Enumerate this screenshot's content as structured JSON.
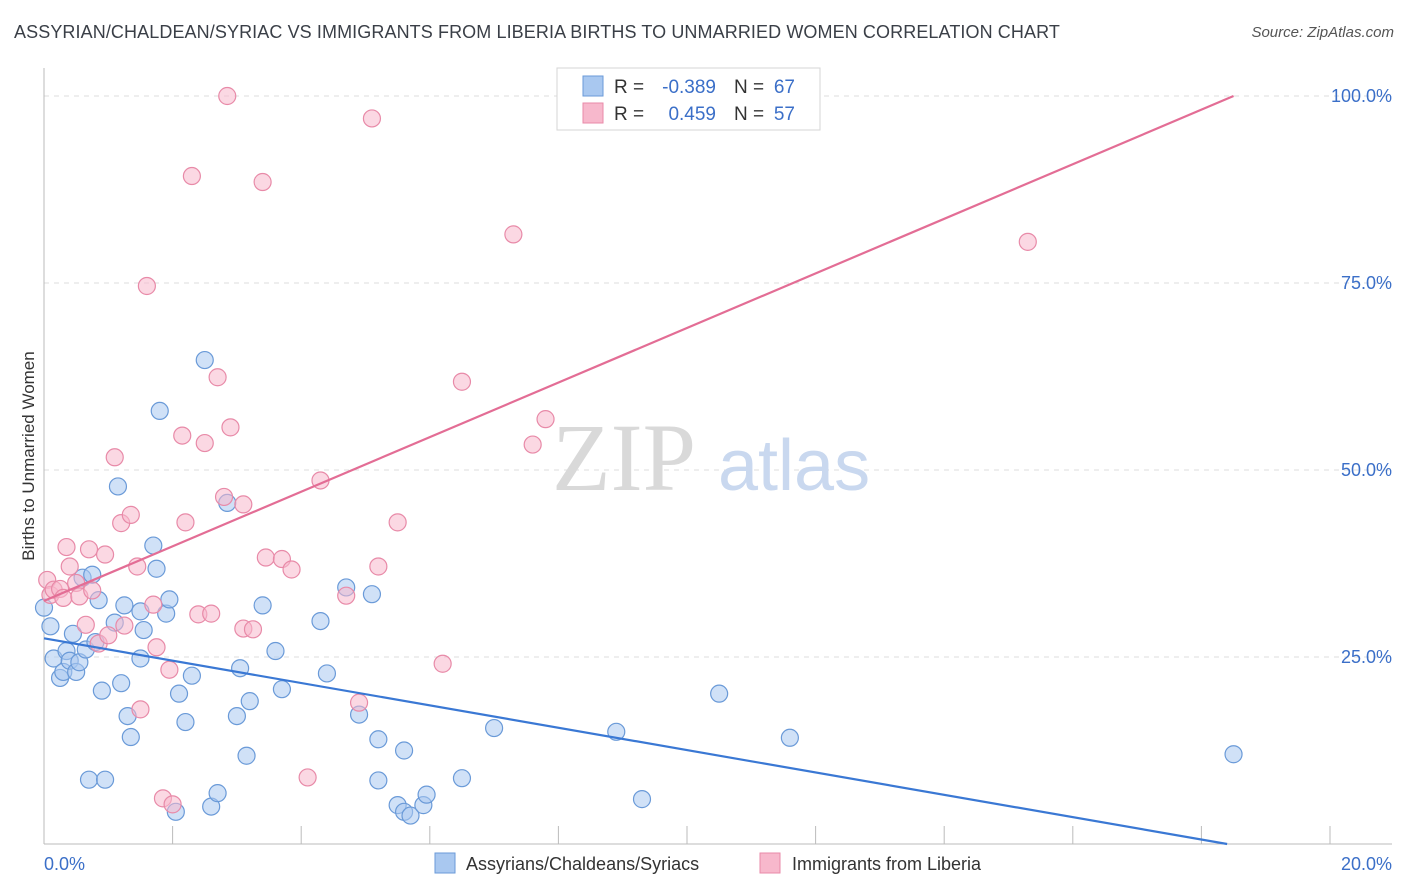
{
  "title": "ASSYRIAN/CHALDEAN/SYRIAC VS IMMIGRANTS FROM LIBERIA BIRTHS TO UNMARRIED WOMEN CORRELATION CHART",
  "source": "Source: ZipAtlas.com",
  "watermark": {
    "zip": "ZIP",
    "atlas": "atlas"
  },
  "legend_top": [
    {
      "r_label": "R =",
      "r_value": "-0.389",
      "n_label": "N =",
      "n_value": "67"
    },
    {
      "r_label": "R =",
      "r_value": "0.459",
      "n_label": "N =",
      "n_value": "57"
    }
  ],
  "legend_bottom": [
    {
      "label": "Assyrians/Chaldeans/Syriacs"
    },
    {
      "label": "Immigrants from Liberia"
    }
  ],
  "colors": {
    "blue_fill": "#a9c8f0",
    "blue_stroke": "#6a9ad8",
    "blue_line": "#3a78d4",
    "pink_fill": "#f7b8cc",
    "pink_stroke": "#e88aa8",
    "pink_line": "#e36d95",
    "axis_text": "#3b6fc8",
    "grid": "#dddddd"
  },
  "chart_data": {
    "type": "scatter",
    "title": "ASSYRIAN/CHALDEAN/SYRIAC VS IMMIGRANTS FROM LIBERIA BIRTHS TO UNMARRIED WOMEN CORRELATION CHART",
    "xlabel": "",
    "ylabel": "Births to Unmarried Women",
    "xlim": [
      0,
      20
    ],
    "ylim": [
      0,
      100
    ],
    "x_tick_labels": [
      "0.0%",
      "20.0%"
    ],
    "y_tick_labels": [
      "25.0%",
      "50.0%",
      "75.0%",
      "100.0%"
    ],
    "y_ticks": [
      25,
      50,
      75,
      100
    ],
    "grid": true,
    "legend_position": "top-center",
    "series": [
      {
        "name": "Assyrians/Chaldeans/Syriacs",
        "r": -0.389,
        "n": 67,
        "trend": {
          "x": [
            0,
            18.4
          ],
          "y": [
            27.5,
            0
          ]
        },
        "points": [
          [
            0.0,
            31.6
          ],
          [
            0.1,
            29.1
          ],
          [
            0.15,
            24.8
          ],
          [
            0.25,
            22.2
          ],
          [
            0.3,
            23.0
          ],
          [
            0.35,
            25.8
          ],
          [
            0.4,
            24.5
          ],
          [
            0.45,
            28.1
          ],
          [
            0.5,
            23.0
          ],
          [
            0.55,
            24.3
          ],
          [
            0.6,
            35.6
          ],
          [
            0.65,
            26.0
          ],
          [
            0.75,
            36.0
          ],
          [
            0.7,
            8.6
          ],
          [
            0.8,
            27.0
          ],
          [
            0.85,
            32.6
          ],
          [
            0.9,
            20.5
          ],
          [
            0.95,
            8.6
          ],
          [
            1.1,
            29.6
          ],
          [
            1.15,
            47.8
          ],
          [
            1.2,
            21.5
          ],
          [
            1.25,
            31.9
          ],
          [
            1.3,
            17.1
          ],
          [
            1.35,
            14.3
          ],
          [
            1.5,
            31.1
          ],
          [
            1.5,
            24.8
          ],
          [
            1.55,
            28.6
          ],
          [
            1.7,
            39.9
          ],
          [
            1.75,
            36.8
          ],
          [
            1.8,
            57.9
          ],
          [
            1.9,
            30.8
          ],
          [
            1.95,
            32.7
          ],
          [
            2.05,
            4.3
          ],
          [
            2.1,
            20.1
          ],
          [
            2.2,
            16.3
          ],
          [
            2.3,
            22.5
          ],
          [
            2.5,
            64.7
          ],
          [
            2.6,
            5.0
          ],
          [
            2.7,
            6.8
          ],
          [
            2.85,
            45.6
          ],
          [
            3.0,
            17.1
          ],
          [
            3.05,
            23.5
          ],
          [
            3.15,
            11.8
          ],
          [
            3.2,
            19.1
          ],
          [
            3.4,
            31.9
          ],
          [
            3.6,
            25.8
          ],
          [
            3.7,
            20.7
          ],
          [
            4.3,
            29.8
          ],
          [
            4.4,
            22.8
          ],
          [
            4.7,
            34.3
          ],
          [
            4.9,
            17.3
          ],
          [
            5.1,
            33.4
          ],
          [
            5.2,
            14.0
          ],
          [
            5.2,
            8.5
          ],
          [
            5.5,
            5.2
          ],
          [
            5.6,
            12.5
          ],
          [
            5.6,
            4.3
          ],
          [
            5.7,
            3.8
          ],
          [
            5.9,
            5.2
          ],
          [
            5.95,
            6.6
          ],
          [
            6.5,
            8.8
          ],
          [
            7.0,
            15.5
          ],
          [
            8.9,
            15.0
          ],
          [
            9.3,
            6.0
          ],
          [
            10.5,
            20.1
          ],
          [
            11.6,
            14.2
          ],
          [
            18.5,
            12.0
          ]
        ]
      },
      {
        "name": "Immigrants from Liberia",
        "r": 0.459,
        "n": 57,
        "trend": {
          "x": [
            0,
            18.5
          ],
          "y": [
            32.5,
            100
          ]
        },
        "points": [
          [
            0.05,
            35.3
          ],
          [
            0.1,
            33.3
          ],
          [
            0.15,
            34.0
          ],
          [
            0.25,
            34.1
          ],
          [
            0.3,
            32.9
          ],
          [
            0.35,
            39.7
          ],
          [
            0.4,
            37.1
          ],
          [
            0.5,
            34.9
          ],
          [
            0.55,
            33.1
          ],
          [
            0.65,
            29.3
          ],
          [
            0.7,
            39.4
          ],
          [
            0.75,
            33.9
          ],
          [
            0.85,
            26.8
          ],
          [
            0.95,
            38.7
          ],
          [
            1.0,
            27.9
          ],
          [
            1.1,
            51.7
          ],
          [
            1.2,
            42.9
          ],
          [
            1.25,
            29.2
          ],
          [
            1.35,
            44.0
          ],
          [
            1.45,
            37.1
          ],
          [
            1.5,
            18.0
          ],
          [
            1.6,
            74.6
          ],
          [
            1.7,
            32.0
          ],
          [
            1.75,
            26.3
          ],
          [
            1.85,
            6.1
          ],
          [
            1.95,
            23.3
          ],
          [
            2.0,
            5.3
          ],
          [
            2.15,
            54.6
          ],
          [
            2.2,
            43.0
          ],
          [
            2.3,
            89.3
          ],
          [
            2.4,
            30.7
          ],
          [
            2.5,
            53.6
          ],
          [
            2.6,
            30.8
          ],
          [
            2.7,
            62.4
          ],
          [
            2.8,
            46.4
          ],
          [
            2.85,
            100.0
          ],
          [
            2.9,
            55.7
          ],
          [
            3.1,
            28.8
          ],
          [
            3.1,
            45.4
          ],
          [
            3.25,
            28.7
          ],
          [
            3.4,
            88.5
          ],
          [
            3.45,
            38.3
          ],
          [
            3.7,
            38.1
          ],
          [
            3.85,
            36.7
          ],
          [
            4.1,
            8.9
          ],
          [
            4.3,
            48.6
          ],
          [
            4.7,
            33.2
          ],
          [
            4.9,
            18.9
          ],
          [
            5.1,
            97.0
          ],
          [
            5.2,
            37.1
          ],
          [
            5.5,
            43.0
          ],
          [
            6.2,
            24.1
          ],
          [
            6.5,
            61.8
          ],
          [
            7.3,
            81.5
          ],
          [
            7.6,
            53.4
          ],
          [
            7.8,
            56.8
          ],
          [
            15.3,
            80.5
          ]
        ]
      }
    ]
  }
}
